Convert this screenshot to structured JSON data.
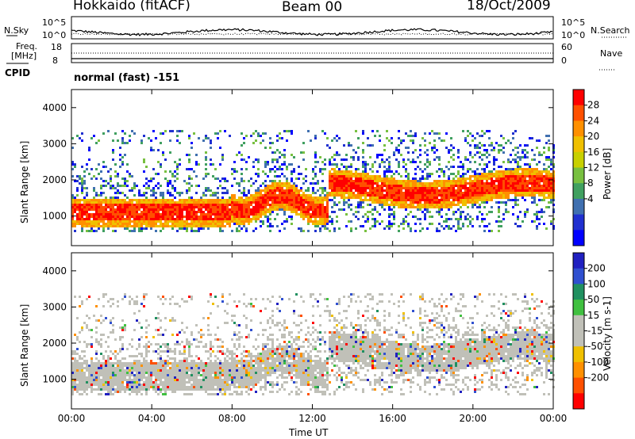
{
  "header": {
    "station": "Hokkaido (fitACF)",
    "beam": "Beam 00",
    "date": "18/Oct/2009"
  },
  "noise_panel": {
    "left_label": "N.Sky",
    "right_label": "N.Search",
    "tick_top_left": "10^5",
    "tick_bottom_left": "10^0",
    "tick_top_right": "10^5",
    "tick_bottom_right": "10^0"
  },
  "freq_panel": {
    "left_label_line1": "Freq.",
    "left_label_line2": "[MHz]",
    "right_label": "Nave",
    "tick_top_left": "18",
    "tick_bottom_left": "8",
    "tick_top_right": "60",
    "tick_bottom_right": "0"
  },
  "cpid": {
    "label": "CPID",
    "value": "normal (fast) -151"
  },
  "chart_data": [
    {
      "type": "heatmap",
      "name": "power",
      "ylabel": "Slant Range [km]",
      "yticks": [
        "4000",
        "3000",
        "2000",
        "1000"
      ],
      "colorbar_label": "Power [dB]",
      "colorbar_ticks": [
        "28",
        "24",
        "20",
        "16",
        "12",
        "8",
        "4"
      ],
      "colorbar_colors": [
        "#ff0000",
        "#ff5000",
        "#ff9000",
        "#f0c000",
        "#c8d000",
        "#78c040",
        "#40a060",
        "#4070b0",
        "#2030d0",
        "#0000ff"
      ],
      "ylim": [
        180,
        4500
      ]
    },
    {
      "type": "heatmap",
      "name": "velocity",
      "ylabel": "Slant Range [km]",
      "yticks": [
        "4000",
        "3000",
        "2000",
        "1000"
      ],
      "colorbar_label": "Velocity [m s-1]",
      "colorbar_ticks": [
        "200",
        "100",
        "50",
        "15",
        "-15",
        "-50",
        "-100",
        "-200"
      ],
      "colorbar_colors": [
        "#2020c0",
        "#3050d0",
        "#209060",
        "#40c040",
        "#c0c0b8",
        "#c0c0b8",
        "#f0c000",
        "#ff9000",
        "#ff5000",
        "#ff0000"
      ],
      "ylim": [
        180,
        4500
      ]
    }
  ],
  "xaxis": {
    "label": "Time UT",
    "ticks": [
      "00:00",
      "04:00",
      "08:00",
      "12:00",
      "16:00",
      "20:00",
      "00:00"
    ]
  }
}
